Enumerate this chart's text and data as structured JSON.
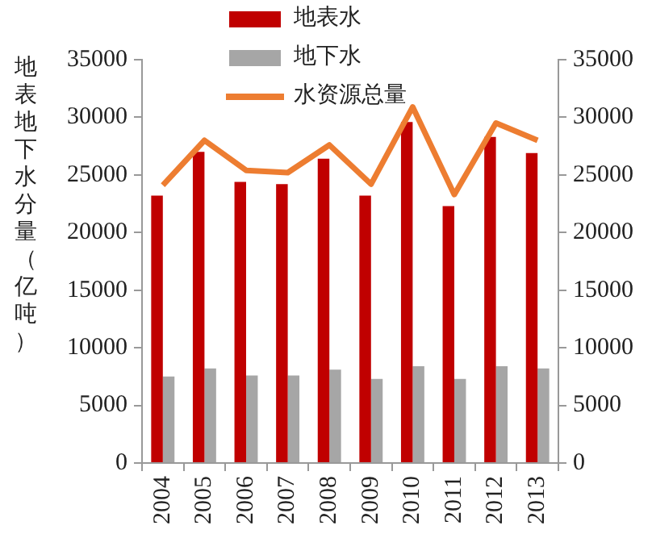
{
  "chart_data": {
    "type": "bar",
    "ylabel": "地表地下水分量（亿吨）",
    "categories": [
      "2004",
      "2005",
      "2006",
      "2007",
      "2008",
      "2009",
      "2010",
      "2011",
      "2012",
      "2013"
    ],
    "series": [
      {
        "name": "地表水",
        "color": "#c00000",
        "values": [
          23200,
          27000,
          24400,
          24200,
          26400,
          23200,
          29600,
          22300,
          28300,
          26900
        ]
      },
      {
        "name": "地下水",
        "color": "#a6a6a6",
        "values": [
          7500,
          8200,
          7600,
          7600,
          8100,
          7300,
          8400,
          7300,
          8400,
          8200
        ]
      },
      {
        "name": "水资源总量",
        "type": "line",
        "axis": "y2",
        "color": "#ed7d31",
        "values": [
          24100,
          28000,
          25400,
          25200,
          27600,
          24200,
          30900,
          23300,
          29500,
          28000
        ]
      }
    ],
    "ylim": [
      0,
      35000
    ],
    "yticks": [
      0,
      5000,
      10000,
      15000,
      20000,
      25000,
      30000,
      35000
    ],
    "y2lim": [
      0,
      35000
    ],
    "y2ticks": [
      0,
      5000,
      10000,
      15000,
      20000,
      25000,
      30000,
      35000
    ],
    "grid": false,
    "legend": "top",
    "marker": "none",
    "line_style": "solid"
  }
}
